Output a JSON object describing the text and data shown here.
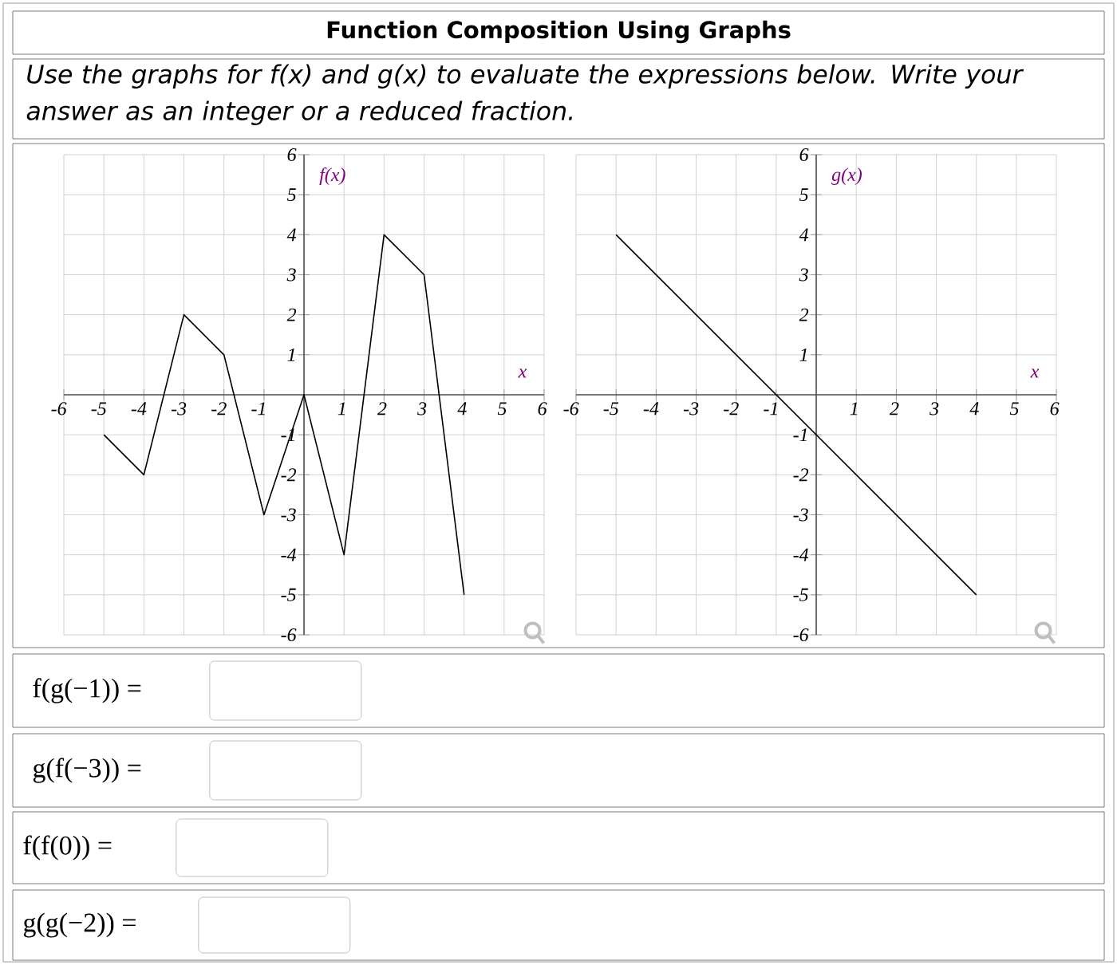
{
  "chart_data": [
    {
      "type": "line",
      "title": "Function Composition Using Graphs",
      "subtitle": "Use the graphs for f(x) and g(x) to evaluate the expressions below. Write your answer as an integer or a reduced fraction.",
      "xlabel": "x",
      "ylabel": "f(x)",
      "color": "#000000",
      "grid": true,
      "x": [
        -5,
        -4,
        -3,
        -2,
        -1,
        0,
        1,
        2,
        3,
        4
      ],
      "values": [
        -1,
        -2,
        2,
        1,
        -3,
        0,
        -4,
        4,
        3,
        -5
      ],
      "xlim": [
        -6,
        6
      ],
      "ylim": [
        -6,
        6
      ],
      "xticks": [
        -6,
        -5,
        -4,
        -3,
        -2,
        -1,
        1,
        2,
        3,
        4,
        5,
        6
      ],
      "yticks": [
        -6,
        -5,
        -4,
        -3,
        -2,
        -1,
        1,
        2,
        3,
        4,
        5,
        6
      ]
    },
    {
      "type": "line",
      "xlabel": "x",
      "ylabel": "g(x)",
      "color": "#000000",
      "grid": true,
      "x": [
        -5,
        4
      ],
      "values": [
        4,
        -5
      ],
      "xlim": [
        -6,
        6
      ],
      "ylim": [
        -6,
        6
      ],
      "xticks": [
        -6,
        -5,
        -4,
        -3,
        -2,
        -1,
        1,
        2,
        3,
        4,
        5,
        6
      ],
      "yticks": [
        -6,
        -5,
        -4,
        -3,
        -2,
        -1,
        1,
        2,
        3,
        4,
        5,
        6
      ]
    },
    {
      "type": "other",
      "annotations": [
        "f(g(−1)) =",
        "g(f(−3)) =",
        "f(f(0)) =",
        "g(g(−2)) ="
      ]
    }
  ]
}
